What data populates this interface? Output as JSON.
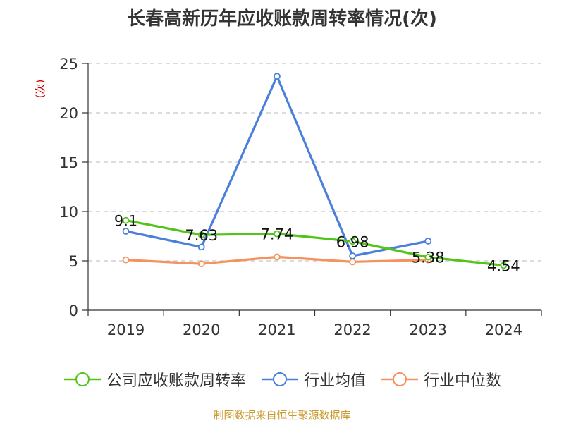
{
  "chart_data": {
    "type": "line",
    "title": "长春高新历年应收账款周转率情况(次)",
    "ylabel": "(次)",
    "ylim": [
      0,
      25
    ],
    "yticks": [
      0,
      5,
      10,
      15,
      20,
      25
    ],
    "grid": true,
    "legend_position": "bottom",
    "categories": [
      "2019",
      "2020",
      "2021",
      "2022",
      "2023",
      "2024"
    ],
    "series": [
      {
        "name": "公司应收账款周转率",
        "color": "#52c41a",
        "values": [
          9.1,
          7.63,
          7.74,
          6.98,
          5.38,
          4.54
        ],
        "labels": [
          "9.1",
          "7.63",
          "7.74",
          "6.98",
          "5.38",
          "4.54"
        ]
      },
      {
        "name": "行业均值",
        "color": "#4a7fdb",
        "values": [
          8.0,
          6.4,
          23.7,
          5.5,
          7.0,
          null
        ]
      },
      {
        "name": "行业中位数",
        "color": "#f5935e",
        "values": [
          5.1,
          4.7,
          5.4,
          4.9,
          5.1,
          null
        ]
      }
    ]
  },
  "source": {
    "text": "制图数据来自恒生聚源数据库",
    "color": "#c99a2e"
  }
}
